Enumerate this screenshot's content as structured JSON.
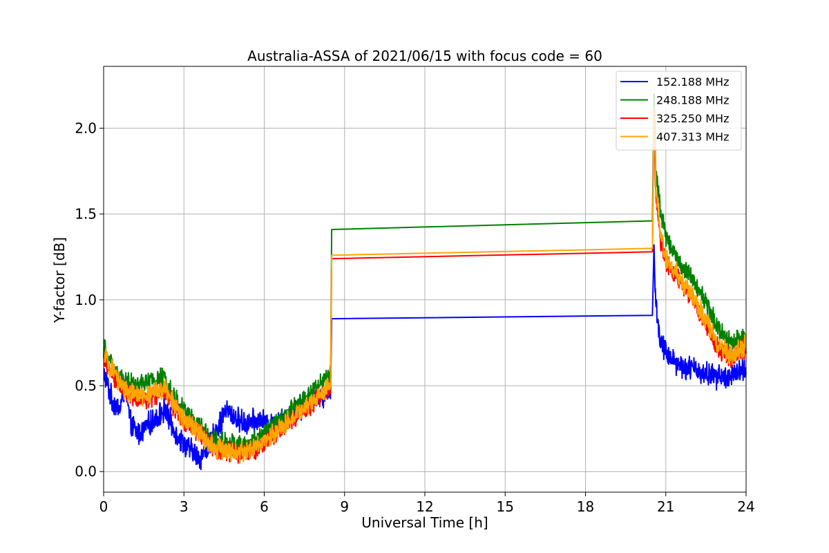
{
  "chart_data": {
    "type": "line",
    "title": "Australia-ASSA of 2021/06/15 with focus code = 60",
    "xlabel": "Universal Time [h]",
    "ylabel": "Y-factor [dB]",
    "xlim": [
      0,
      24
    ],
    "ylim": [
      -0.12,
      2.36
    ],
    "xticks": [
      0,
      3,
      6,
      9,
      12,
      15,
      18,
      21,
      24
    ],
    "yticks": [
      0.0,
      0.5,
      1.0,
      1.5,
      2.0
    ],
    "xtick_labels": [
      "0",
      "3",
      "6",
      "9",
      "12",
      "15",
      "18",
      "21",
      "24"
    ],
    "ytick_labels": [
      "0.0",
      "0.5",
      "1.0",
      "1.5",
      "2.0"
    ],
    "grid": true,
    "legend_position": "top-right",
    "series": [
      {
        "name": "152.188 MHz",
        "color": "#0000ff",
        "points": [
          [
            0,
            0.58
          ],
          [
            0.3,
            0.42
          ],
          [
            0.6,
            0.36
          ],
          [
            0.8,
            0.5
          ],
          [
            1.0,
            0.28
          ],
          [
            1.3,
            0.22
          ],
          [
            1.6,
            0.26
          ],
          [
            2.0,
            0.32
          ],
          [
            2.3,
            0.36
          ],
          [
            2.6,
            0.25
          ],
          [
            3.0,
            0.16
          ],
          [
            3.3,
            0.12
          ],
          [
            3.6,
            0.08
          ],
          [
            3.9,
            0.14
          ],
          [
            4.2,
            0.24
          ],
          [
            4.6,
            0.36
          ],
          [
            5.0,
            0.3
          ],
          [
            5.4,
            0.28
          ],
          [
            5.8,
            0.3
          ],
          [
            6.3,
            0.26
          ],
          [
            7.0,
            0.34
          ],
          [
            7.6,
            0.4
          ],
          [
            8.2,
            0.45
          ],
          [
            8.48,
            0.48
          ],
          [
            8.52,
            0.89
          ],
          [
            20.5,
            0.91
          ],
          [
            20.56,
            1.32
          ],
          [
            20.62,
            0.98
          ],
          [
            20.8,
            0.76
          ],
          [
            21.0,
            0.7
          ],
          [
            21.5,
            0.62
          ],
          [
            22.0,
            0.6
          ],
          [
            22.5,
            0.57
          ],
          [
            23.0,
            0.55
          ],
          [
            23.5,
            0.56
          ],
          [
            24.0,
            0.6
          ]
        ]
      },
      {
        "name": "248.188 MHz",
        "color": "#008000",
        "points": [
          [
            0,
            0.72
          ],
          [
            0.4,
            0.6
          ],
          [
            0.8,
            0.52
          ],
          [
            1.2,
            0.5
          ],
          [
            1.6,
            0.52
          ],
          [
            2.0,
            0.54
          ],
          [
            2.3,
            0.55
          ],
          [
            2.7,
            0.42
          ],
          [
            3.0,
            0.36
          ],
          [
            3.4,
            0.3
          ],
          [
            3.8,
            0.22
          ],
          [
            4.2,
            0.18
          ],
          [
            4.6,
            0.17
          ],
          [
            5.0,
            0.15
          ],
          [
            5.4,
            0.16
          ],
          [
            5.8,
            0.2
          ],
          [
            6.3,
            0.26
          ],
          [
            7.0,
            0.36
          ],
          [
            7.6,
            0.44
          ],
          [
            8.2,
            0.53
          ],
          [
            8.48,
            0.57
          ],
          [
            8.52,
            1.41
          ],
          [
            20.5,
            1.46
          ],
          [
            20.56,
            2.2
          ],
          [
            20.62,
            1.78
          ],
          [
            20.8,
            1.5
          ],
          [
            21.0,
            1.38
          ],
          [
            21.5,
            1.22
          ],
          [
            22.0,
            1.12
          ],
          [
            22.5,
            0.98
          ],
          [
            23.0,
            0.82
          ],
          [
            23.5,
            0.75
          ],
          [
            24.0,
            0.77
          ]
        ]
      },
      {
        "name": "325.250 MHz",
        "color": "#ff0000",
        "points": [
          [
            0,
            0.66
          ],
          [
            0.4,
            0.54
          ],
          [
            0.8,
            0.47
          ],
          [
            1.2,
            0.44
          ],
          [
            1.6,
            0.42
          ],
          [
            2.0,
            0.45
          ],
          [
            2.3,
            0.46
          ],
          [
            2.7,
            0.36
          ],
          [
            3.0,
            0.3
          ],
          [
            3.4,
            0.25
          ],
          [
            3.8,
            0.18
          ],
          [
            4.2,
            0.13
          ],
          [
            4.6,
            0.12
          ],
          [
            5.0,
            0.1
          ],
          [
            5.4,
            0.11
          ],
          [
            5.8,
            0.14
          ],
          [
            6.3,
            0.2
          ],
          [
            7.0,
            0.3
          ],
          [
            7.6,
            0.37
          ],
          [
            8.2,
            0.45
          ],
          [
            8.48,
            0.49
          ],
          [
            8.52,
            1.24
          ],
          [
            20.5,
            1.28
          ],
          [
            20.56,
            2.08
          ],
          [
            20.62,
            1.62
          ],
          [
            20.8,
            1.34
          ],
          [
            21.0,
            1.22
          ],
          [
            21.5,
            1.12
          ],
          [
            22.0,
            1.0
          ],
          [
            22.5,
            0.86
          ],
          [
            23.0,
            0.7
          ],
          [
            23.5,
            0.66
          ],
          [
            24.0,
            0.72
          ]
        ]
      },
      {
        "name": "407.313 MHz",
        "color": "#ffa500",
        "points": [
          [
            0,
            0.68
          ],
          [
            0.4,
            0.56
          ],
          [
            0.8,
            0.48
          ],
          [
            1.2,
            0.45
          ],
          [
            1.6,
            0.44
          ],
          [
            2.0,
            0.47
          ],
          [
            2.3,
            0.48
          ],
          [
            2.7,
            0.37
          ],
          [
            3.0,
            0.31
          ],
          [
            3.4,
            0.26
          ],
          [
            3.8,
            0.19
          ],
          [
            4.2,
            0.14
          ],
          [
            4.6,
            0.13
          ],
          [
            5.0,
            0.11
          ],
          [
            5.4,
            0.12
          ],
          [
            5.8,
            0.15
          ],
          [
            6.3,
            0.21
          ],
          [
            7.0,
            0.31
          ],
          [
            7.6,
            0.38
          ],
          [
            8.2,
            0.46
          ],
          [
            8.48,
            0.5
          ],
          [
            8.52,
            1.26
          ],
          [
            20.5,
            1.3
          ],
          [
            20.56,
            2.12
          ],
          [
            20.62,
            1.68
          ],
          [
            20.8,
            1.38
          ],
          [
            21.0,
            1.24
          ],
          [
            21.5,
            1.14
          ],
          [
            22.0,
            1.02
          ],
          [
            22.5,
            0.88
          ],
          [
            23.0,
            0.72
          ],
          [
            23.5,
            0.68
          ],
          [
            24.0,
            0.74
          ]
        ]
      }
    ]
  }
}
